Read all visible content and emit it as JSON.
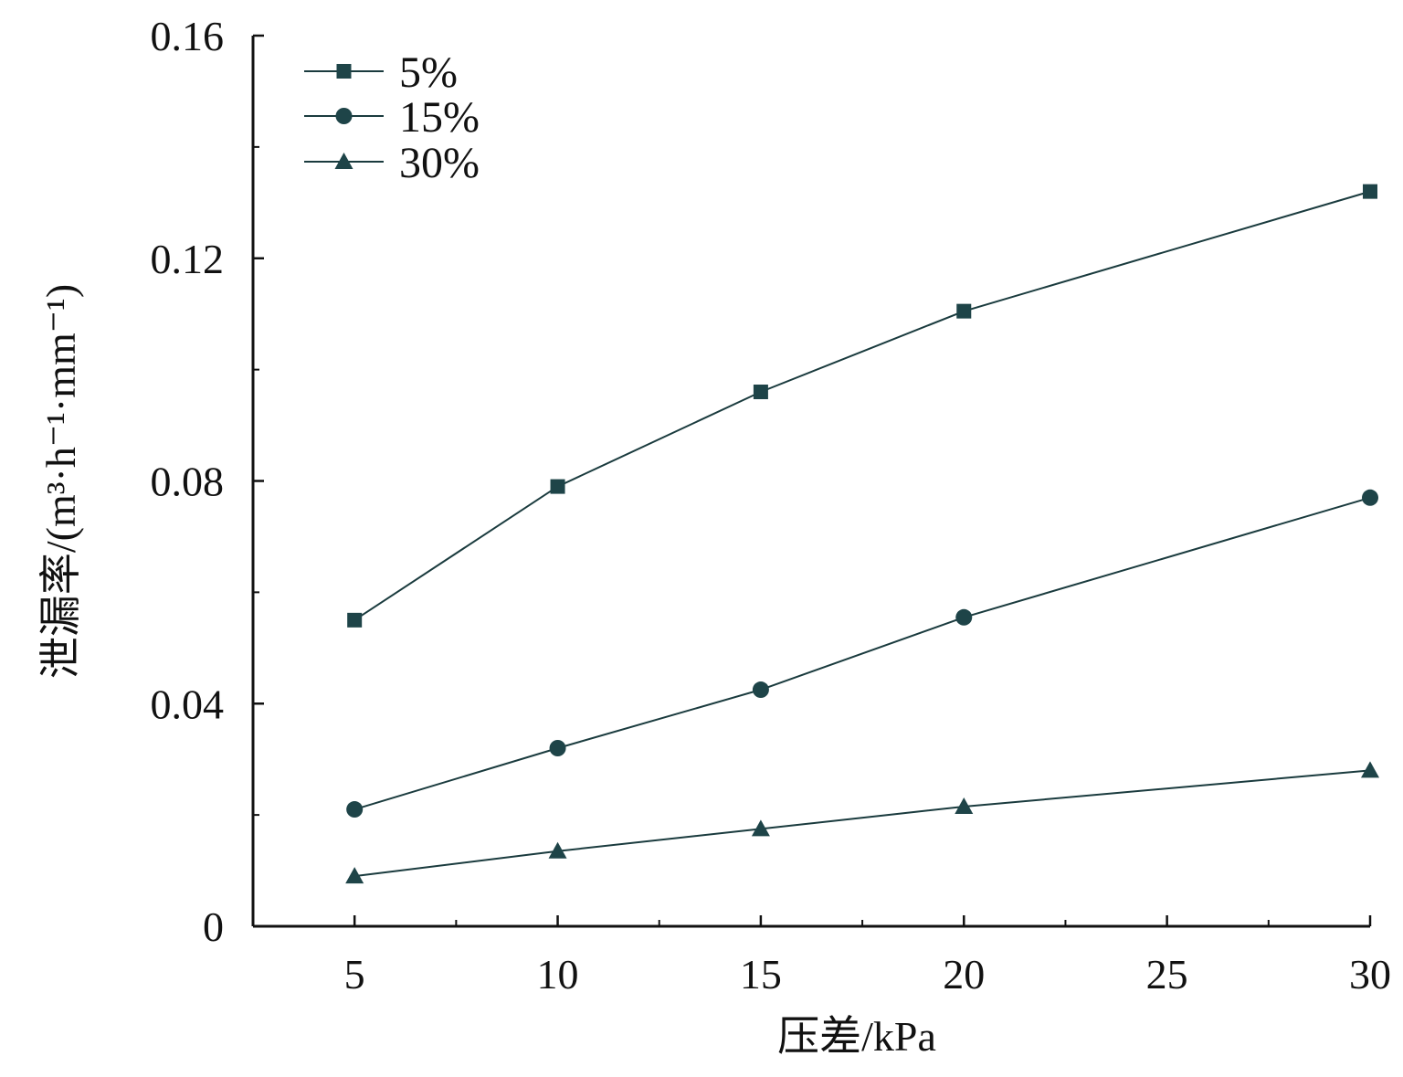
{
  "chart_data": {
    "type": "line",
    "xlabel": "压差/kPa",
    "ylabel": "泄漏率/(m³·h⁻¹·mm⁻¹)",
    "xlim": [
      2.5,
      30
    ],
    "ylim": [
      0,
      0.16
    ],
    "x_ticks": [
      5,
      10,
      15,
      20,
      25,
      30
    ],
    "x_tick_labels": [
      "5",
      "10",
      "15",
      "20",
      "25",
      "30"
    ],
    "x_minor_ticks": [
      7.5,
      12.5,
      17.5,
      22.5,
      27.5
    ],
    "y_ticks": [
      0,
      0.04,
      0.08,
      0.12,
      0.16
    ],
    "y_tick_labels": [
      "0",
      "0.04",
      "0.08",
      "0.12",
      "0.16"
    ],
    "y_minor_ticks": [
      0.02,
      0.06,
      0.1,
      0.14
    ],
    "x": [
      5,
      10,
      15,
      20,
      25,
      30
    ],
    "series": [
      {
        "name": "5%",
        "marker": "square",
        "x": [
          5,
          10,
          15,
          20,
          30
        ],
        "values": [
          0.055,
          0.079,
          0.096,
          0.1105,
          0.132
        ]
      },
      {
        "name": "15%",
        "marker": "circle",
        "x": [
          5,
          10,
          15,
          20,
          30
        ],
        "values": [
          0.021,
          0.032,
          0.0425,
          0.0555,
          0.077
        ]
      },
      {
        "name": "30%",
        "marker": "triangle",
        "x": [
          5,
          10,
          15,
          20,
          30
        ],
        "values": [
          0.009,
          0.0135,
          0.0175,
          0.0215,
          0.028
        ]
      }
    ],
    "legend_position": "top-left",
    "grid": false,
    "colors": {
      "line": "#1a3b3e",
      "marker": "#1e4448",
      "axis": "#111111"
    }
  }
}
